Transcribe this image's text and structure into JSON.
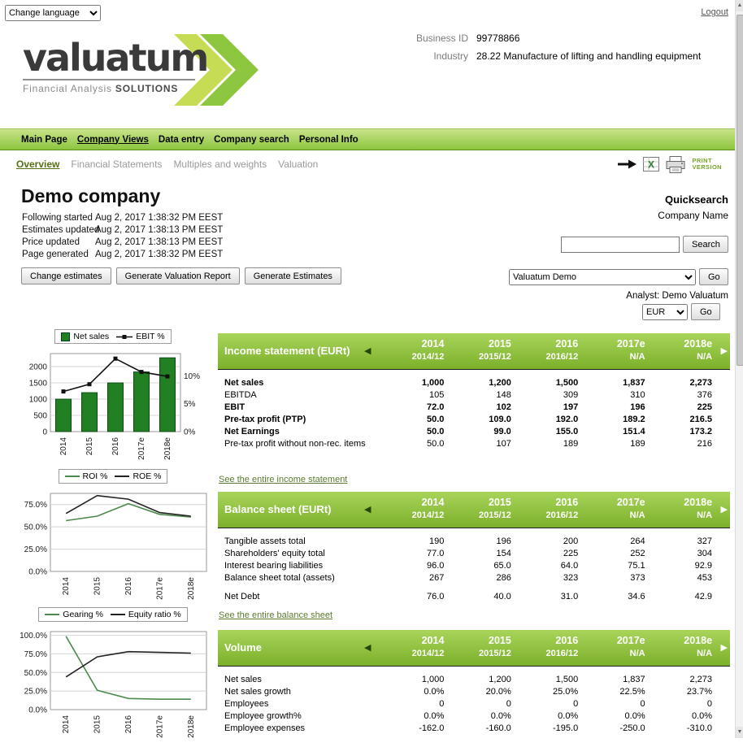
{
  "topbar": {
    "change_language": "Change language",
    "logout": "Logout"
  },
  "header": {
    "logo_text": "valuatum",
    "tagline_normal": "Financial Analysis ",
    "tagline_bold": "SOLUTIONS",
    "business_id_label": "Business ID",
    "business_id_value": "99778866",
    "industry_label": "Industry",
    "industry_value": "28.22 Manufacture of lifting and handling equipment"
  },
  "main_nav": {
    "items": [
      {
        "label": "Main Page"
      },
      {
        "label": "Company Views"
      },
      {
        "label": "Data entry"
      },
      {
        "label": "Company search"
      },
      {
        "label": "Personal Info"
      }
    ]
  },
  "sub_nav": {
    "items": [
      {
        "label": "Overview"
      },
      {
        "label": "Financial Statements"
      },
      {
        "label": "Multiples and weights"
      },
      {
        "label": "Valuation"
      }
    ],
    "print_line1": "PRINT",
    "print_line2": "VERSION"
  },
  "company": {
    "name": "Demo company",
    "info": [
      {
        "label": "Following started",
        "value": "Aug 2, 2017 1:38:32 PM EEST"
      },
      {
        "label": "Estimates updated",
        "value": "Aug 2, 2017 1:38:13 PM EEST"
      },
      {
        "label": "Price updated",
        "value": "Aug 2, 2017 1:38:13 PM EEST"
      },
      {
        "label": "Page generated",
        "value": "Aug 2, 2017 1:38:32 PM EEST"
      }
    ],
    "buttons": [
      "Change estimates",
      "Generate Valuation Report",
      "Generate Estimates"
    ]
  },
  "quicksearch": {
    "title": "Quicksearch",
    "subtitle": "Company Name",
    "search_value": "",
    "search_button": "Search",
    "company_select": "Valuatum Demo",
    "go_button": "Go",
    "analyst": "Analyst: Demo Valuatum",
    "currency_select": "EUR"
  },
  "tables": [
    {
      "title": "Income statement (EURt)",
      "years": [
        "2014",
        "2015",
        "2016",
        "2017e",
        "2018e"
      ],
      "periods": [
        "2014/12",
        "2015/12",
        "2016/12",
        "N/A",
        "N/A"
      ],
      "rows": [
        {
          "label": "Net sales",
          "bold": true,
          "values": [
            "1,000",
            "1,200",
            "1,500",
            "1,837",
            "2,273"
          ]
        },
        {
          "label": "EBITDA",
          "values": [
            "105",
            "148",
            "309",
            "310",
            "376"
          ]
        },
        {
          "label": "EBIT",
          "bold": true,
          "values": [
            "72.0",
            "102",
            "197",
            "196",
            "225"
          ]
        },
        {
          "label": "Pre-tax profit (PTP)",
          "bold": true,
          "values": [
            "50.0",
            "109.0",
            "192.0",
            "189.2",
            "216.5"
          ]
        },
        {
          "label": "Net Earnings",
          "bold": true,
          "values": [
            "50.0",
            "99.0",
            "155.0",
            "151.4",
            "173.2"
          ]
        },
        {
          "label": "Pre-tax profit without non-rec. items",
          "values": [
            "50.0",
            "107",
            "189",
            "189",
            "216"
          ]
        }
      ],
      "link": "See the entire income statement"
    },
    {
      "title": "Balance sheet (EURt)",
      "years": [
        "2014",
        "2015",
        "2016",
        "2017e",
        "2018e"
      ],
      "periods": [
        "2014/12",
        "2015/12",
        "2016/12",
        "N/A",
        "N/A"
      ],
      "rows": [
        {
          "label": "Tangible assets total",
          "values": [
            "190",
            "196",
            "200",
            "264",
            "327"
          ]
        },
        {
          "label": "Shareholders' equity total",
          "values": [
            "77.0",
            "154",
            "225",
            "252",
            "304"
          ]
        },
        {
          "label": "Interest bearing liabilities",
          "values": [
            "96.0",
            "65.0",
            "64.0",
            "75.1",
            "92.9"
          ]
        },
        {
          "label": "Balance sheet total (assets)",
          "values": [
            "267",
            "286",
            "323",
            "373",
            "453"
          ]
        },
        {
          "label": "Net Debt",
          "gap_before": true,
          "values": [
            "76.0",
            "40.0",
            "31.0",
            "34.6",
            "42.9"
          ]
        }
      ],
      "link": "See the entire balance sheet"
    },
    {
      "title": "Volume",
      "years": [
        "2014",
        "2015",
        "2016",
        "2017e",
        "2018e"
      ],
      "periods": [
        "2014/12",
        "2015/12",
        "2016/12",
        "N/A",
        "N/A"
      ],
      "rows": [
        {
          "label": "Net sales",
          "values": [
            "1,000",
            "1,200",
            "1,500",
            "1,837",
            "2,273"
          ]
        },
        {
          "label": "Net sales growth",
          "values": [
            "0.0%",
            "20.0%",
            "25.0%",
            "22.5%",
            "23.7%"
          ]
        },
        {
          "label": "Employees",
          "values": [
            "0",
            "0",
            "0",
            "0",
            "0"
          ]
        },
        {
          "label": "Employee growth%",
          "values": [
            "0.0%",
            "0.0%",
            "0.0%",
            "0.0%",
            "0.0%"
          ]
        },
        {
          "label": "Employee expenses",
          "values": [
            "-162.0",
            "-160.0",
            "-195.0",
            "-250.0",
            "-310.0"
          ]
        }
      ],
      "link": ""
    }
  ],
  "chart_data": [
    {
      "type": "bar",
      "title": "Net sales and EBIT %",
      "categories": [
        "2014",
        "2015",
        "2016",
        "2017e",
        "2018e"
      ],
      "series": [
        {
          "name": "Net sales",
          "type": "bar",
          "axis": "left",
          "values": [
            1000,
            1200,
            1500,
            1837,
            2273
          ],
          "color": "#228022"
        },
        {
          "name": "EBIT %",
          "type": "line",
          "axis": "right",
          "marker": "square",
          "values": [
            7.2,
            8.5,
            13.1,
            10.7,
            9.9
          ],
          "color": "#111111"
        }
      ],
      "left_axis": {
        "ticks": [
          0,
          500,
          1000,
          1500,
          2000
        ],
        "max": 2400
      },
      "right_axis": {
        "ticks": [
          0,
          5,
          10
        ],
        "max": 14,
        "suffix": "%"
      },
      "legend_position": "top",
      "grid": true
    },
    {
      "type": "line",
      "title": "ROI % and ROE %",
      "categories": [
        "2014",
        "2015",
        "2016",
        "2017e",
        "2018e"
      ],
      "series": [
        {
          "name": "ROI %",
          "type": "line",
          "axis": "left",
          "values": [
            57,
            62,
            76,
            64,
            61
          ],
          "color": "#4e8a4e"
        },
        {
          "name": "ROE %",
          "type": "line",
          "axis": "left",
          "values": [
            65,
            85,
            81,
            66,
            62
          ],
          "color": "#222222"
        }
      ],
      "left_axis": {
        "ticks": [
          0,
          25,
          50,
          75
        ],
        "max": 87.5,
        "suffix": "%",
        "decimals": 1
      },
      "legend_position": "top",
      "grid": true
    },
    {
      "type": "line",
      "title": "Gearing % and Equity ratio %",
      "categories": [
        "2014",
        "2015",
        "2016",
        "2017e",
        "2018e"
      ],
      "series": [
        {
          "name": "Gearing %",
          "type": "line",
          "axis": "left",
          "values": [
            98.7,
            26.0,
            15.0,
            14.0,
            14.0
          ],
          "color": "#4e8a4e"
        },
        {
          "name": "Equity ratio %",
          "type": "line",
          "axis": "left",
          "values": [
            44,
            71,
            78,
            77,
            76
          ],
          "color": "#222222"
        }
      ],
      "left_axis": {
        "ticks": [
          0,
          25,
          50,
          75,
          100
        ],
        "max": 105,
        "suffix": "%",
        "decimals": 1
      },
      "legend_position": "top",
      "grid": true
    }
  ]
}
